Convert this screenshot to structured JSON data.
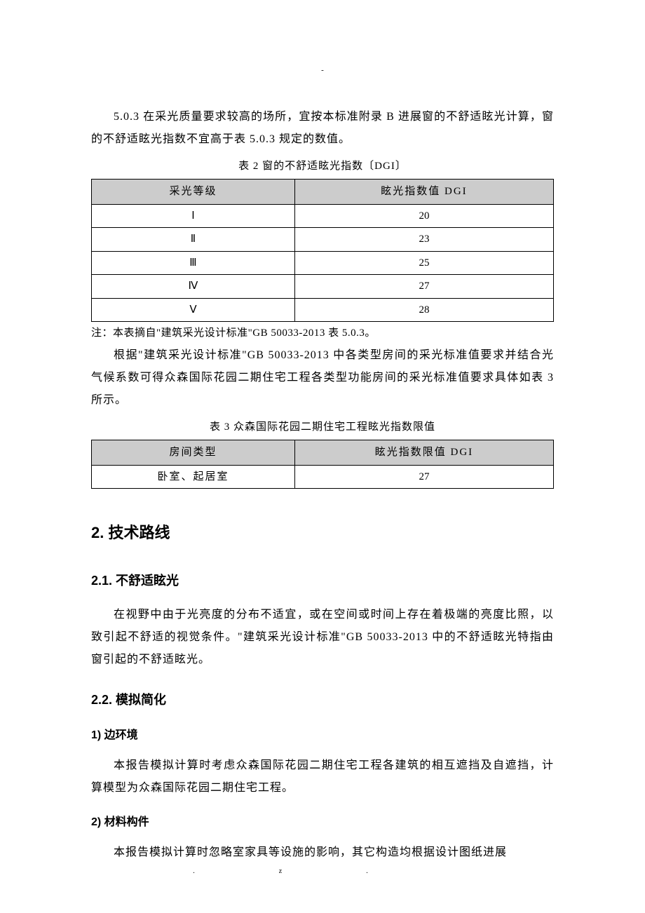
{
  "top_dash": "-",
  "p1": "5.0.3  在采光质量要求较高的场所，宜按本标准附录 B  进展窗的不舒适眩光计算，窗的不舒适眩光指数不宜高于表 5.0.3 规定的数值。",
  "table2": {
    "caption": "表  2 窗的不舒适眩光指数〔DGI〕",
    "headers": [
      "采光等级",
      "眩光指数值 DGI"
    ],
    "rows": [
      [
        "Ⅰ",
        "20"
      ],
      [
        "Ⅱ",
        "23"
      ],
      [
        "Ⅲ",
        "25"
      ],
      [
        "Ⅳ",
        "27"
      ],
      [
        "Ⅴ",
        "28"
      ]
    ],
    "note": "注：本表摘自\"建筑采光设计标准\"GB 50033-2013 表 5.0.3。"
  },
  "p2": "根据\"建筑采光设计标准\"GB 50033-2013 中各类型房间的采光标准值要求并结合光气候系数可得众森国际花园二期住宅工程各类型功能房间的采光标准值要求具体如表  3 所示。",
  "table3": {
    "caption": "表  3 众森国际花园二期住宅工程眩光指数限值",
    "headers": [
      "房间类型",
      "眩光指数限值 DGI"
    ],
    "rows": [
      [
        "卧室、起居室",
        "27"
      ]
    ]
  },
  "s2": {
    "title": "2.  技术路线",
    "s21": {
      "title": "2.1.  不舒适眩光",
      "p": "在视野中由于光亮度的分布不适宜，或在空间或时间上存在着极端的亮度比照，以致引起不舒适的视觉条件。\"建筑采光设计标准\"GB 50033-2013 中的不舒适眩光特指由窗引起的不舒适眩光。"
    },
    "s22": {
      "title": "2.2.  模拟简化",
      "item1": {
        "title": "1)  边环境",
        "p": "本报告模拟计算时考虑众森国际花园二期住宅工程各建筑的相互遮挡及自遮挡，计算模型为众森国际花园二期住宅工程。"
      },
      "item2": {
        "title": "2)  材料构件",
        "p": "本报告模拟计算时忽略室家具等设施的影响，其它构造均根据设计图纸进展"
      }
    }
  },
  "footer": {
    "left": ".",
    "right": "z."
  }
}
